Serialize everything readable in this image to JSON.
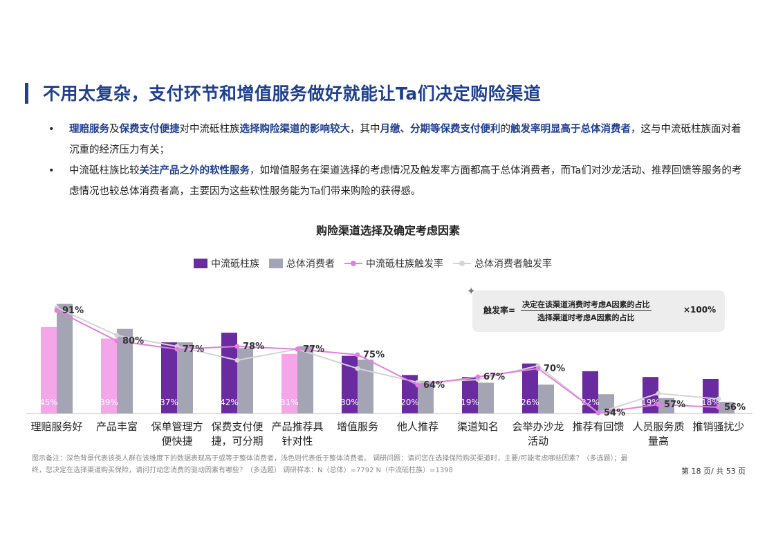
{
  "header": {
    "title": "不用太复杂，支付环节和增值服务做好就能让Ta们决定购险渠道"
  },
  "bullets": [
    {
      "dot": "•",
      "segments": [
        {
          "text": "理赔服务",
          "hl": true
        },
        {
          "text": "及",
          "hl": false
        },
        {
          "text": "保费支付便捷",
          "hl": true
        },
        {
          "text": "对中流砥柱族",
          "hl": false
        },
        {
          "text": "选择购险渠道的影响较大",
          "hl": true
        },
        {
          "text": "，其中",
          "hl": false
        },
        {
          "text": "月缴、分期等保费支付便利",
          "hl": true
        },
        {
          "text": "的",
          "hl": false
        },
        {
          "text": "触发率明显高于总体消费者",
          "hl": true
        },
        {
          "text": "，这与中流砥柱族面对着沉重的经济压力有关；",
          "hl": false
        }
      ]
    },
    {
      "dot": "•",
      "segments": [
        {
          "text": "中流砥柱族比较",
          "hl": false
        },
        {
          "text": "关注产品之外的软性服务",
          "hl": true
        },
        {
          "text": "，如增值服务在渠道选择的考虑情况及触发率方面都高于总体消费者，而Ta们对沙龙活动、推荐回馈等服务的考虑情况也较总体消费者高，主要因为这些软性服务能为Ta们带来购险的获得感。",
          "hl": false
        }
      ]
    }
  ],
  "chart_data": {
    "type": "bar",
    "title": "购险渠道选择及确定考虑因素",
    "categories": [
      "理赔服务好",
      "产品丰富",
      "保单管理方便快捷",
      "保费支付便捷，可分期",
      "产品推荐具针对性",
      "增值服务",
      "他人推荐",
      "渠道知名",
      "会举办沙龙活动",
      "推荐有回馈",
      "人员服务质量高",
      "推销骚扰少"
    ],
    "category_lines": [
      [
        "理赔服务好"
      ],
      [
        "产品丰富"
      ],
      [
        "保单管理方",
        "便快捷"
      ],
      [
        "保费支付便",
        "捷，可分期"
      ],
      [
        "产品推荐具",
        "针对性"
      ],
      [
        "增值服务"
      ],
      [
        "他人推荐"
      ],
      [
        "渠道知名"
      ],
      [
        "会举办沙龙",
        "活动"
      ],
      [
        "推荐有回馈"
      ],
      [
        "人员服务质",
        "量高"
      ],
      [
        "推销骚扰少"
      ]
    ],
    "series": [
      {
        "name": "中流砥柱族",
        "kind": "bar",
        "values": [
          45,
          39,
          37,
          42,
          31,
          30,
          20,
          19,
          26,
          22,
          19,
          18
        ],
        "labels": [
          "45%",
          "39%",
          "37%",
          "42%",
          "31%",
          "30%",
          "20%",
          "19%",
          "26%",
          "22%",
          "19%",
          "18%"
        ]
      },
      {
        "name": "总体消费者",
        "kind": "bar",
        "values": [
          57,
          44,
          37,
          34,
          35,
          28,
          17,
          16,
          15,
          10,
          8,
          6
        ]
      },
      {
        "name": "中流砥柱族触发率",
        "kind": "line",
        "values": [
          91,
          80,
          77,
          78,
          77,
          75,
          64,
          67,
          70,
          54,
          57,
          56
        ],
        "labels": [
          "91%",
          "80%",
          "77%",
          "78%",
          "77%",
          "75%",
          "64%",
          "67%",
          "70%",
          "54%",
          "57%",
          "56%"
        ]
      },
      {
        "name": "总体消费者触发率",
        "kind": "line",
        "values": [
          92,
          82,
          78,
          73,
          77,
          70,
          65,
          66,
          71,
          54,
          61,
          59
        ]
      }
    ],
    "bar_highlight_rule": "dark: 中流砥柱族 ≥ 总体消费者; light: lower",
    "colors": {
      "bar_dark": "#6a2aa0",
      "bar_light": "#f4a6e8",
      "bar_total": "#a3a4b4",
      "line_main": "#e27fe0",
      "line_total": "#d4d4d4"
    },
    "legend": {
      "placement": "top",
      "items": [
        "中流砥柱族",
        "总体消费者",
        "中流砥柱族触发率",
        "总体消费者触发率"
      ]
    },
    "grid": false
  },
  "formula": {
    "label": "触发率=",
    "numerator": "决定在该渠道消费时考虑A因素的占比",
    "denominator": "选择渠道时考虑A因素的占比",
    "multiplier": "×100%",
    "pin_icon": "pushpin-icon"
  },
  "footer": {
    "note": "图示备注：深色背景代表该类人群在该维度下的数据表现高于或等于整体消费者，浅色则代表低于整体消费者。   调研问题：请问您在选择保险购买渠道时，主要/可能考虑哪些因素？（多选题）；最终，您决定在选择渠道购买保险，请问打动您消费的驱动因素有哪些？（多选题）   调研样本：N（总体）=7792      N（中流砥柱族）=1398",
    "page": "第 18 页/ 共 53 页"
  }
}
